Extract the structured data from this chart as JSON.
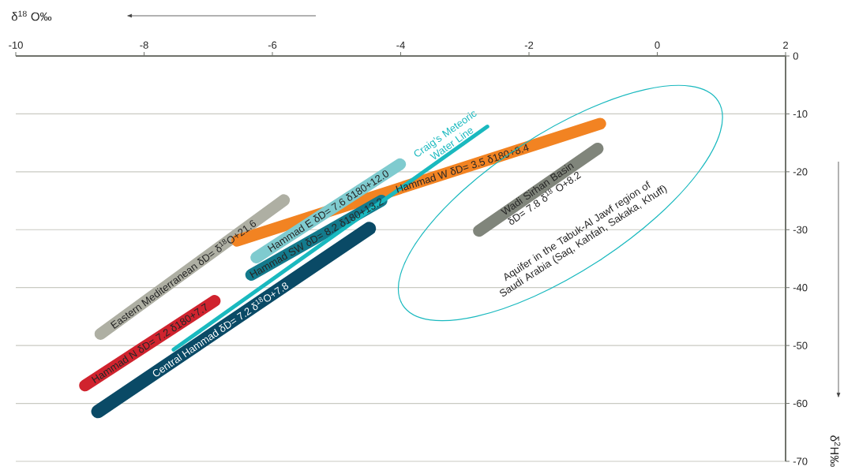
{
  "chart_data": {
    "type": "line",
    "xlabel": "δ$^{18}$ O‰",
    "ylabel": "δ$^{2}$H‰",
    "xlim": [
      -10,
      2
    ],
    "xticks": [
      -10,
      -8,
      -6,
      -4,
      -2,
      0,
      2
    ],
    "ylim": [
      -70,
      0
    ],
    "yticks": [
      0,
      -10,
      -20,
      -30,
      -40,
      -50,
      -60,
      -70
    ],
    "grid": "y",
    "marker": "none",
    "line_style": "solid",
    "annotations": [
      "Aquifer in the Tabuk-Al Jawf region of Saudi Arabia (Saq, Kahfah, Sakaka, Khuff)"
    ],
    "series": [
      {
        "name": "Eastern Mediterranean δD= δ$^{18}$O+21.6",
        "color": "#aeafa3",
        "x": [
          -8.68,
          -5.82
        ],
        "values": [
          -48.0,
          -24.9
        ]
      },
      {
        "name": "Hammad W δD= 3.5 δ180+8.4",
        "color": "#f28322",
        "x": [
          -6.55,
          -0.89
        ],
        "values": [
          -31.9,
          -11.7
        ]
      },
      {
        "name": "Hammad SW δD= 8.2 δ180+13.2",
        "color": "#137a8c",
        "x": [
          -6.33,
          -4.3
        ],
        "values": [
          -37.8,
          -25.0
        ]
      },
      {
        "name": "Hammad E δD= 7.6 δ180+12.0",
        "color": "#7fcbcf",
        "x": [
          -6.25,
          -4.01
        ],
        "values": [
          -34.8,
          -18.7
        ]
      },
      {
        "name": "Craig’s Meteoric Water Line",
        "color": "#1ab9bf",
        "x": [
          -7.54,
          -2.65
        ],
        "values": [
          -50.7,
          -12.2
        ]
      },
      {
        "name": "Hammad N δD= 7.2 δ180+7.7",
        "color": "#d0232e",
        "x": [
          -8.92,
          -6.9
        ],
        "values": [
          -56.9,
          -42.3
        ]
      },
      {
        "name": "Central Hammad δD= 7.2 δ$^{18}$O+7.8",
        "color": "#0a4a66",
        "x": [
          -8.72,
          -4.49
        ],
        "values": [
          -61.4,
          -29.8
        ]
      },
      {
        "name": "Wadi Sirhan Basin δD= 7.8 δ$^{18}$ O+8.2",
        "color": "#80857b",
        "x": [
          -2.78,
          -0.93
        ],
        "values": [
          -30.2,
          -16.0
        ]
      }
    ]
  }
}
